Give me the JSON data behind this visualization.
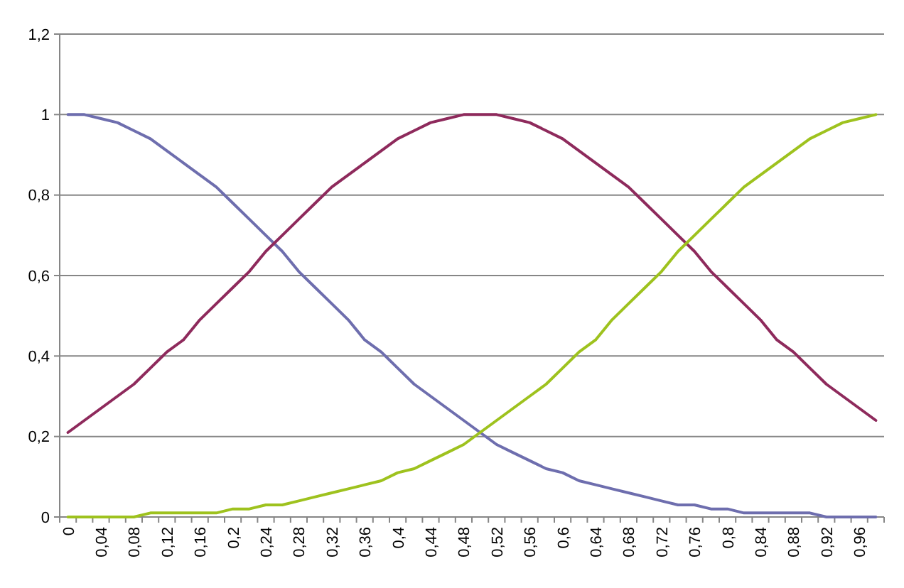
{
  "chart_data": {
    "type": "line",
    "categories": [
      "0",
      null,
      "0,04",
      null,
      "0,08",
      null,
      "0,12",
      null,
      "0,16",
      null,
      "0,2",
      null,
      "0,24",
      null,
      "0,28",
      null,
      "0,32",
      null,
      "0,36",
      null,
      "0,4",
      null,
      "0,44",
      null,
      "0,48",
      null,
      "0,52",
      null,
      "0,56",
      null,
      "0,6",
      null,
      "0,64",
      null,
      "0,68",
      null,
      "0,72",
      null,
      "0,76",
      null,
      "0,8",
      null,
      "0,84",
      null,
      "0,88",
      null,
      "0,92",
      null,
      "0,96",
      null
    ],
    "series": [
      {
        "color": "#6e6eae",
        "values": [
          1,
          1,
          0.99,
          0.98,
          0.96,
          0.94,
          0.91,
          0.88,
          0.85,
          0.82,
          0.78,
          0.74,
          0.7,
          0.66,
          0.61,
          0.57,
          0.53,
          0.49,
          0.44,
          0.41,
          0.37,
          0.33,
          0.3,
          0.27,
          0.24,
          0.21,
          0.18,
          0.16,
          0.14,
          0.12,
          0.11,
          0.09,
          0.08,
          0.07,
          0.06,
          0.05,
          0.04,
          0.03,
          0.03,
          0.02,
          0.02,
          0.01,
          0.01,
          0.01,
          0.01,
          0.01,
          0,
          0,
          0,
          0
        ]
      },
      {
        "color": "#8e2a5c",
        "values": [
          0.21,
          0.24,
          0.27,
          0.3,
          0.33,
          0.37,
          0.41,
          0.44,
          0.49,
          0.53,
          0.57,
          0.61,
          0.66,
          0.7,
          0.74,
          0.78,
          0.82,
          0.85,
          0.88,
          0.91,
          0.94,
          0.96,
          0.98,
          0.99,
          1,
          1,
          1,
          0.99,
          0.98,
          0.96,
          0.94,
          0.91,
          0.88,
          0.85,
          0.82,
          0.78,
          0.74,
          0.7,
          0.66,
          0.61,
          0.57,
          0.53,
          0.49,
          0.44,
          0.41,
          0.37,
          0.33,
          0.3,
          0.27,
          0.24
        ]
      },
      {
        "color": "#9ec21e",
        "values": [
          0,
          0,
          0,
          0,
          0,
          0.01,
          0.01,
          0.01,
          0.01,
          0.01,
          0.02,
          0.02,
          0.03,
          0.03,
          0.04,
          0.05,
          0.06,
          0.07,
          0.08,
          0.09,
          0.11,
          0.12,
          0.14,
          0.16,
          0.18,
          0.21,
          0.24,
          0.27,
          0.3,
          0.33,
          0.37,
          0.41,
          0.44,
          0.49,
          0.53,
          0.57,
          0.61,
          0.66,
          0.7,
          0.74,
          0.78,
          0.82,
          0.85,
          0.88,
          0.91,
          0.94,
          0.96,
          0.98,
          0.99,
          1
        ]
      }
    ],
    "ylim": [
      0,
      1.2
    ],
    "yticks": [
      0,
      {
        "value": 0.2,
        "label": "0,2"
      },
      {
        "value": 0.4,
        "label": "0,4"
      },
      {
        "value": 0.6,
        "label": "0,6"
      },
      {
        "value": 0.8,
        "label": "0,8"
      },
      1,
      {
        "value": 1.2,
        "label": "1,2"
      }
    ],
    "grid": "y",
    "marker": "none",
    "line_style": "solid"
  }
}
